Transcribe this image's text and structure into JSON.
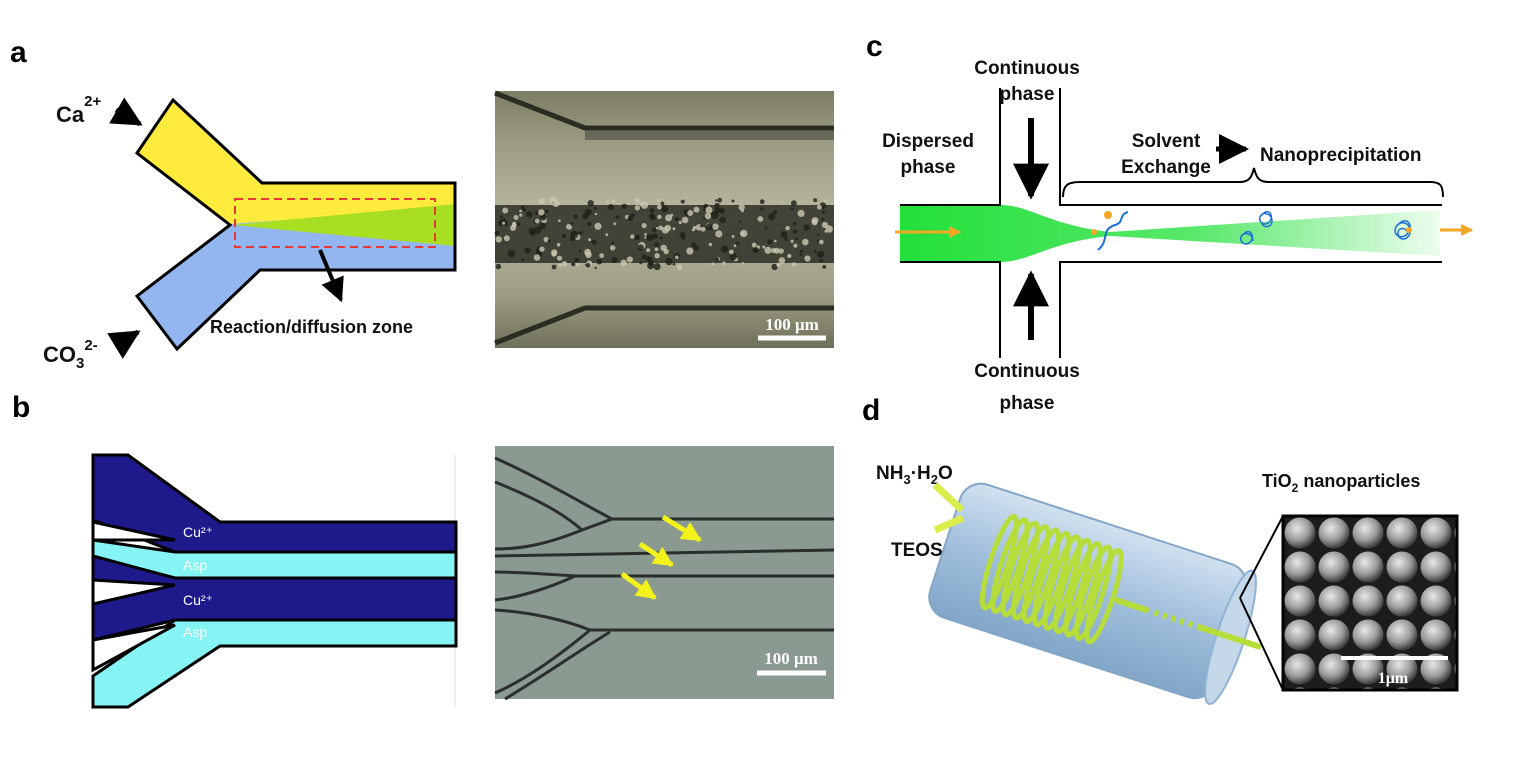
{
  "panels": {
    "a": {
      "letter": "a",
      "ion_top": "Ca",
      "ion_top_sup": "2+",
      "ion_bottom": "CO",
      "ion_bottom_sub": "3",
      "ion_bottom_sup": "2-",
      "zone_label": "Reaction/diffusion zone",
      "scalebar": "100 μm",
      "colors": {
        "top_channel": "#ffeb3b",
        "bottom_channel": "#93b5f0",
        "mix": "#a8df22",
        "box": "#e53935"
      }
    },
    "b": {
      "letter": "b",
      "labels": [
        "Cu²⁺",
        "Asp",
        "Cu²⁺",
        "Asp"
      ],
      "scalebar": "100 μm",
      "colors": {
        "cu": "#1f1a8c",
        "asp": "#86f4f4",
        "arrow": "#f3f21a"
      }
    },
    "c": {
      "letter": "c",
      "continuous_top": [
        "Continuous",
        "phase"
      ],
      "continuous_bottom": [
        "Continuous",
        "phase"
      ],
      "dispersed": [
        "Dispersed",
        "phase"
      ],
      "solvent": [
        "Solvent",
        "Exchange"
      ],
      "nanoprecipitation": "Nanoprecipitation",
      "colors": {
        "stream": "#22e03a",
        "flow_arrow": "#f5a623",
        "polymer": "#1e6fd9"
      }
    },
    "d": {
      "letter": "d",
      "reagent1_main": "NH",
      "reagent1_sub1": "3",
      "reagent1_mid": "·H",
      "reagent1_sub2": "2",
      "reagent1_end": "O",
      "reagent2": "TEOS",
      "product_main": "TiO",
      "product_sub": "2",
      "product_end": " nanoparticles",
      "scalebar": "1μm",
      "colors": {
        "coil": "#b6dd3a",
        "cylinder": "#8fb3d6"
      }
    }
  }
}
